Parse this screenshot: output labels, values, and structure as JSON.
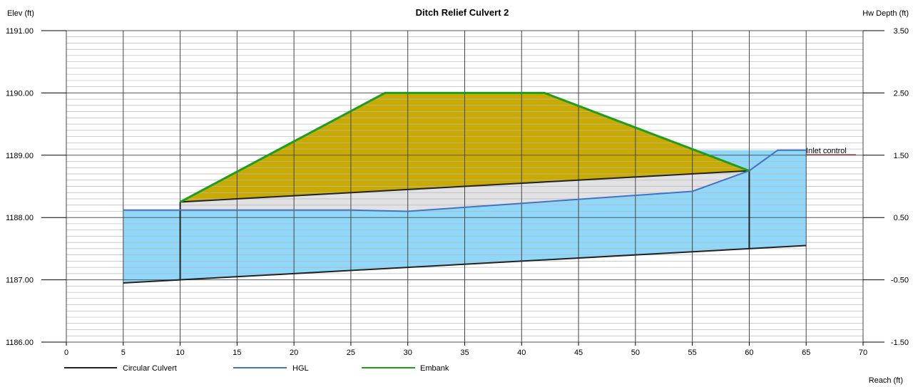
{
  "chart_data": {
    "type": "area",
    "title": "Ditch Relief Culvert 2",
    "ylabel_left": "Elev (ft)",
    "ylabel_right": "Hw Depth (ft)",
    "xlabel": "Reach (ft)",
    "xlim": [
      0,
      70
    ],
    "ylim": [
      1186,
      1191
    ],
    "ylim_right": [
      -1.5,
      3.5
    ],
    "x_ticks": [
      "0",
      "5",
      "10",
      "15",
      "20",
      "25",
      "30",
      "35",
      "40",
      "45",
      "50",
      "55",
      "60",
      "65",
      "70"
    ],
    "y_ticks_left": [
      "1191.00",
      "1190.00",
      "1189.00",
      "1188.00",
      "1187.00",
      "1186.00"
    ],
    "y_ticks_right": [
      "3.50",
      "2.50",
      "1.50",
      "0.50",
      "-0.50",
      "-1.50"
    ],
    "grid": true,
    "legend_position": "bottom-left",
    "annotation": "Inlet control",
    "colors": {
      "culvert": "#222222",
      "hgl": "#4472c4",
      "embank": "#1e9e1e",
      "embank_fill": "#c8aa00",
      "water_fill": "#90d8fa",
      "culvert_fill": "#e2e2e4",
      "annotation": "#8b1a1a"
    },
    "series": [
      {
        "name": "Circular Culvert",
        "invert": [
          [
            5,
            1186.95
          ],
          [
            10,
            1187.0
          ],
          [
            60,
            1187.5
          ],
          [
            65,
            1187.55
          ]
        ],
        "crown": [
          [
            10,
            1188.25
          ],
          [
            60,
            1188.75
          ]
        ],
        "inlet_wall_x": 60,
        "outlet_wall_x": 10
      },
      {
        "name": "HGL",
        "values": [
          [
            5,
            1188.12
          ],
          [
            25,
            1188.12
          ],
          [
            30,
            1188.1
          ],
          [
            55,
            1188.42
          ],
          [
            60,
            1188.75
          ],
          [
            62.5,
            1189.08
          ],
          [
            65,
            1189.08
          ]
        ]
      },
      {
        "name": "Embank",
        "values": [
          [
            10,
            1188.25
          ],
          [
            28,
            1190.0
          ],
          [
            42,
            1190.0
          ],
          [
            60,
            1188.75
          ]
        ]
      }
    ],
    "water_region": {
      "upstream_x_range": [
        55,
        65
      ],
      "downstream_x_range": [
        5,
        10
      ]
    },
    "legend": [
      "Circular Culvert",
      "HGL",
      "Embank"
    ]
  }
}
